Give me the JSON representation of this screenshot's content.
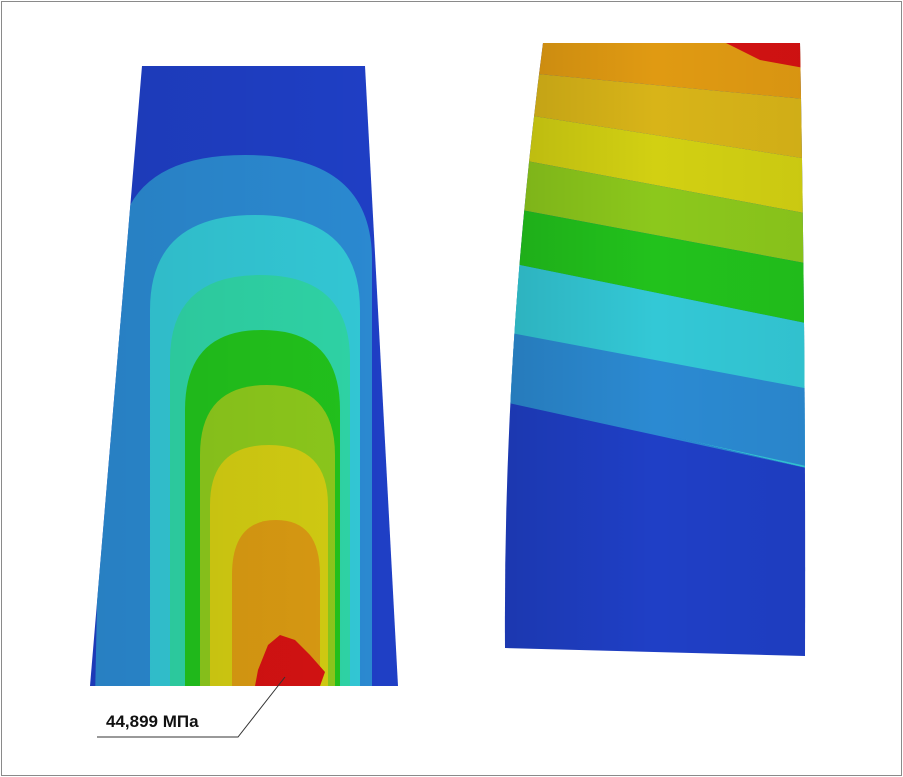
{
  "annotation": {
    "label": "44,899 МПа"
  }
}
